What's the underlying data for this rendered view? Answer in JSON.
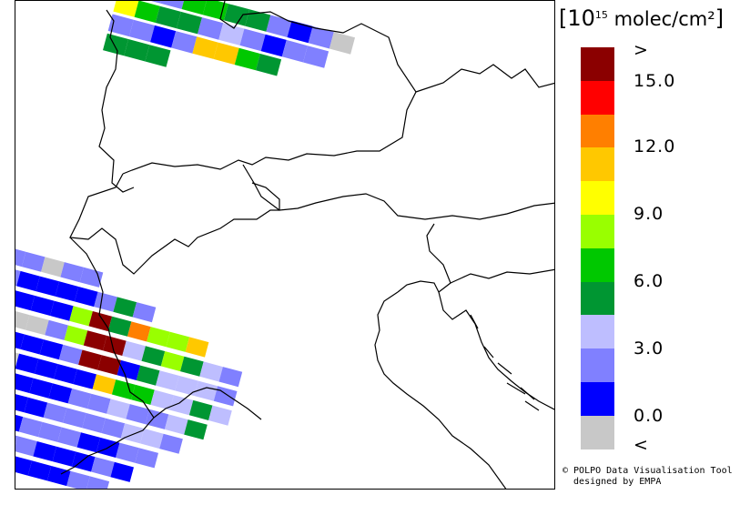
{
  "legend": {
    "title_prefix": "[10",
    "title_exponent": "15",
    "title_unit": " molec/cm²",
    "title_suffix": "]",
    "labels": [
      ">",
      "15.0",
      "12.0",
      "9.0",
      "6.0",
      "3.0",
      "0.0",
      "<"
    ],
    "colors": [
      "#8b0000",
      "#ff0000",
      "#ff7f00",
      "#ffc800",
      "#ffff00",
      "#99ff00",
      "#00c800",
      "#009632",
      "#bebeff",
      "#8080ff",
      "#0000ff",
      "#c8c8c8"
    ]
  },
  "credit": {
    "line1": "© POLPO Data Visualisation Tool",
    "line2": "  designed by EMPA"
  },
  "swaths": {
    "top_right": [
      [
        10,
        9,
        9,
        6,
        6,
        7,
        7,
        9,
        10,
        9,
        11
      ],
      [
        4,
        6,
        7,
        7,
        9,
        8,
        9,
        10,
        9,
        9
      ],
      [
        9,
        9,
        10,
        9,
        3,
        3,
        6,
        7
      ],
      [
        7,
        7,
        7
      ]
    ],
    "bottom_left": [
      [
        9,
        9,
        11,
        9,
        9
      ],
      [
        9,
        10,
        10,
        10,
        10,
        9,
        7,
        9
      ],
      [
        10,
        10,
        10,
        10,
        5,
        0,
        7,
        2,
        5,
        5,
        3
      ],
      [
        6,
        11,
        11,
        9,
        5,
        0,
        0,
        8,
        7,
        5,
        7,
        8,
        9
      ],
      [
        7,
        10,
        10,
        10,
        9,
        0,
        0,
        10,
        7,
        8,
        8,
        8,
        9
      ],
      [
        11,
        11,
        10,
        10,
        10,
        10,
        3,
        6,
        6,
        8,
        8,
        7,
        8
      ],
      [
        10,
        10,
        10,
        10,
        10,
        9,
        9,
        8,
        9,
        9,
        8,
        7
      ],
      [
        9,
        9,
        10,
        10,
        9,
        9,
        9,
        9,
        8,
        8,
        9
      ],
      [
        9,
        10,
        10,
        9,
        9,
        9,
        10,
        10,
        9,
        9
      ],
      [
        9,
        9,
        9,
        9,
        10,
        10,
        10,
        9,
        10
      ],
      [
        9,
        9,
        9,
        10,
        10,
        10,
        9,
        9
      ]
    ]
  }
}
